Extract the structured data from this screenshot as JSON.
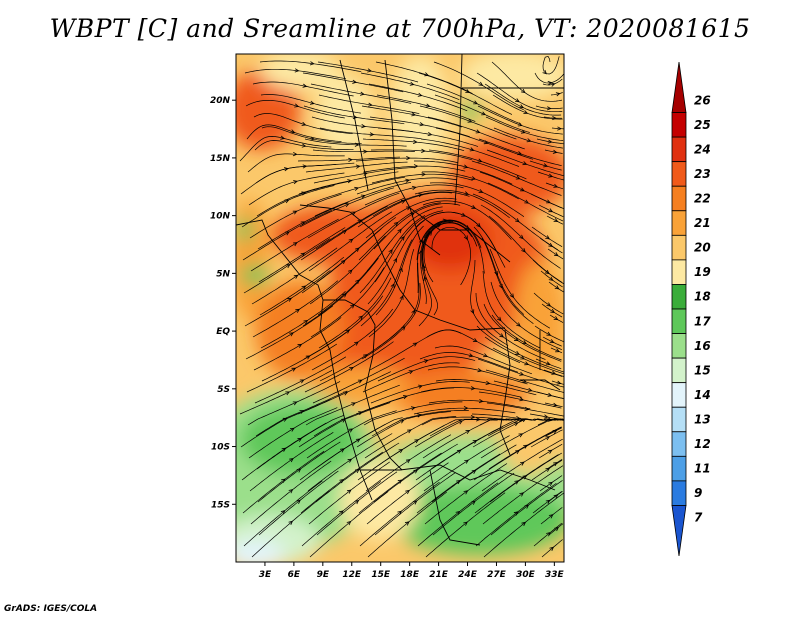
{
  "title": "WBPT [C] and Sreamline at 700hPa, VT: 2020081615",
  "credit": "GrADS: IGES/COLA",
  "map": {
    "lon_range": [
      0,
      34
    ],
    "lat_range": [
      -20,
      24
    ],
    "lat_ticks": [
      {
        "value": 20,
        "label": "20N"
      },
      {
        "value": 15,
        "label": "15N"
      },
      {
        "value": 10,
        "label": "10N"
      },
      {
        "value": 5,
        "label": "5N"
      },
      {
        "value": 0,
        "label": "EQ"
      },
      {
        "value": -5,
        "label": "5S"
      },
      {
        "value": -10,
        "label": "10S"
      },
      {
        "value": -15,
        "label": "15S"
      }
    ],
    "lon_ticks": [
      {
        "value": 3,
        "label": "3E"
      },
      {
        "value": 6,
        "label": "6E"
      },
      {
        "value": 9,
        "label": "9E"
      },
      {
        "value": 12,
        "label": "12E"
      },
      {
        "value": 15,
        "label": "15E"
      },
      {
        "value": 18,
        "label": "18E"
      },
      {
        "value": 21,
        "label": "21E"
      },
      {
        "value": 24,
        "label": "24E"
      },
      {
        "value": 27,
        "label": "27E"
      },
      {
        "value": 30,
        "label": "30E"
      },
      {
        "value": 33,
        "label": "33E"
      }
    ],
    "features": [
      "wet-bulb potential temperature shading",
      "streamlines",
      "country borders",
      "coastlines"
    ]
  },
  "colorbar": {
    "labels": [
      "26",
      "25",
      "24",
      "23",
      "22",
      "21",
      "20",
      "19",
      "18",
      "17",
      "16",
      "15",
      "14",
      "13",
      "12",
      "11",
      "9",
      "7"
    ],
    "colors": [
      "#a50000",
      "#c40000",
      "#e03010",
      "#f05a1a",
      "#f57f20",
      "#f9a238",
      "#fbc86a",
      "#fde9a3",
      "#3aad3a",
      "#5ec85a",
      "#9bdf8b",
      "#d3f2cb",
      "#e3f4fb",
      "#b5dff6",
      "#7cbff0",
      "#4d9fe6",
      "#2a7be0",
      "#1a55d0"
    ]
  }
}
